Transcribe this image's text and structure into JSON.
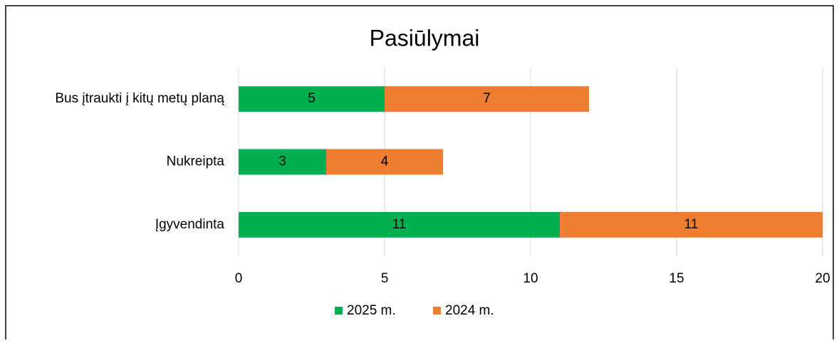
{
  "chart_data": {
    "type": "stacked_barh",
    "title": "Pasiūlymai",
    "categories": [
      "Bus įtraukti į kitų metų planą",
      "Nukreipta",
      "Įgyvendinta"
    ],
    "series": [
      {
        "name": "2025 m.",
        "color": "#00b050",
        "values": [
          5,
          3,
          11
        ]
      },
      {
        "name": "2024 m.",
        "color": "#ed7d31",
        "values": [
          7,
          4,
          11
        ]
      }
    ],
    "xlim": [
      0,
      20
    ],
    "xticks": [
      0,
      5,
      10,
      15,
      20
    ],
    "grid": true,
    "legend": "bottom"
  }
}
